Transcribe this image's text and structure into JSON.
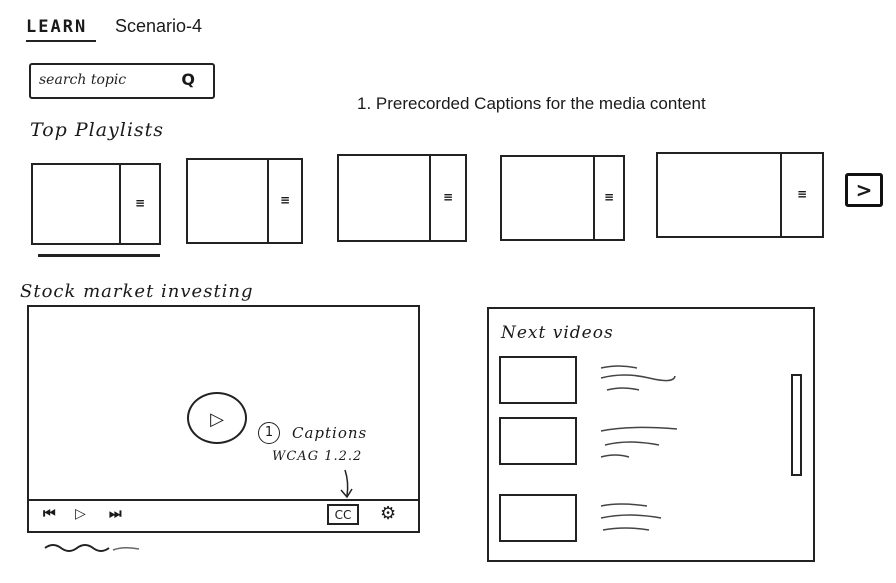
{
  "header": {
    "app_title": "LEARN",
    "scenario": "Scenario-4"
  },
  "search": {
    "placeholder": "search topic",
    "icon": "search-icon"
  },
  "note": {
    "text": "1. Prerecorded Captions for the media content"
  },
  "top_playlists": {
    "title": "Top Playlists",
    "items": [
      {
        "menu_glyph": "≡"
      },
      {
        "menu_glyph": "≡"
      },
      {
        "menu_glyph": "≡"
      },
      {
        "menu_glyph": "≡"
      },
      {
        "menu_glyph": "≡"
      }
    ],
    "next_glyph": ">"
  },
  "video": {
    "title": "Stock market investing",
    "play_glyph": "▷",
    "controls": {
      "prev_glyph": "⏮",
      "play_glyph": "▷",
      "next_glyph": "⏭",
      "cc_label": "CC",
      "settings_glyph": "⚙"
    }
  },
  "annotation": {
    "number": "1",
    "label": "Captions",
    "reference": "WCAG 1.2.2"
  },
  "next_videos": {
    "title": "Next videos",
    "items": [
      {},
      {},
      {}
    ]
  }
}
